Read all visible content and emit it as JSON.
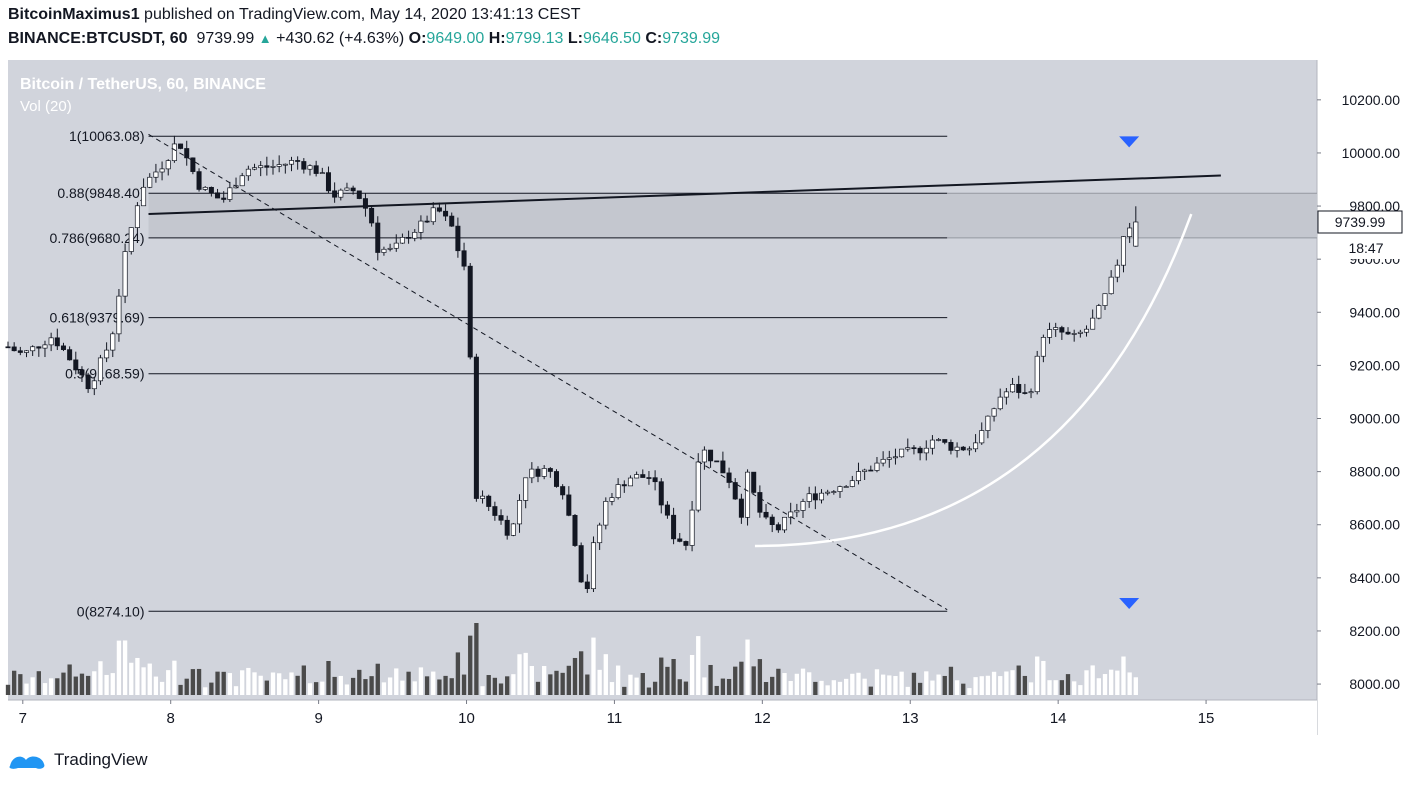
{
  "header": {
    "author": "BitcoinMaximus1",
    "published_text": "published on TradingView.com, May 14, 2020 13:41:13 CEST",
    "symbol": "BINANCE:BTCUSDT, 60",
    "last": "9739.99",
    "change": "+430.62 (+4.63%)",
    "o_label": "O:",
    "o": "9649.00",
    "h_label": "H:",
    "h": "9799.13",
    "l_label": "L:",
    "l": "9646.50",
    "c_label": "C:",
    "c": "9739.99"
  },
  "legend": {
    "title": "Bitcoin / TetherUS, 60, BINANCE",
    "volume": "Vol (20)"
  },
  "price_tag": {
    "value": "9739.99",
    "countdown": "18:47"
  },
  "footer": {
    "brand": "TradingView"
  },
  "colors": {
    "background": "#d1d4dc",
    "panel": "#ffffff",
    "candle_up": "#ffffff",
    "candle_down": "#131722",
    "volume_up": "#ffffff",
    "volume_down": "#4a4a4a",
    "marker": "#2962ff",
    "zone": "#c4c7cf"
  },
  "chart_data": {
    "type": "candlestick",
    "title": "Bitcoin / TetherUS, 60, BINANCE",
    "y_axis": {
      "range": [
        7940,
        10350
      ],
      "ticks": [
        "10200.00",
        "10000.00",
        "9800.00",
        "9600.00",
        "9400.00",
        "9200.00",
        "9000.00",
        "8800.00",
        "8600.00",
        "8400.00",
        "8200.00",
        "8000.00"
      ],
      "tick_values": [
        10200,
        10000,
        9800,
        9600,
        9400,
        9200,
        9000,
        8800,
        8600,
        8400,
        8200,
        8000
      ]
    },
    "x_axis": {
      "ticks": [
        "7",
        "8",
        "9",
        "10",
        "11",
        "12",
        "13",
        "14",
        "15"
      ],
      "tick_days": [
        7,
        8,
        9,
        10,
        11,
        12,
        13,
        14,
        15
      ],
      "range_days": [
        6.9,
        15.75
      ]
    },
    "fib_levels": [
      {
        "label": "1(10063.08)",
        "value": 10063.08
      },
      {
        "label": "0.88(9848.40)",
        "value": 9848.4
      },
      {
        "label": "0.786(9680.24)",
        "value": 9680.24
      },
      {
        "label": "0.618(9379.69)",
        "value": 9379.69
      },
      {
        "label": "0.5(9168.59)",
        "value": 9168.59
      },
      {
        "label": "0(8274.10)",
        "value": 8274.1
      }
    ],
    "fib_range_days": [
      7.85,
      13.25
    ],
    "resistance_zone": [
      9680.24,
      9848.4
    ],
    "trendlines": [
      {
        "name": "ascending-resistance",
        "from": [
          7.85,
          9770
        ],
        "to": [
          15.1,
          9915
        ],
        "style": "solid"
      },
      {
        "name": "descending-diagonal",
        "from": [
          7.85,
          10070
        ],
        "to": [
          13.25,
          8280
        ],
        "style": "dashed"
      }
    ],
    "parabolic_curve": {
      "start": [
        11.95,
        8520
      ],
      "end": [
        14.9,
        9770
      ]
    },
    "markers": [
      {
        "type": "down-arrow",
        "day": 14.48,
        "price": 10040,
        "pane": "price"
      },
      {
        "type": "down-arrow",
        "day": 14.48,
        "pane": "volume"
      }
    ],
    "last_price": 9739.99,
    "price_path": [
      [
        6.9,
        9270
      ],
      [
        7.0,
        9240
      ],
      [
        7.2,
        9310
      ],
      [
        7.3,
        9240
      ],
      [
        7.45,
        9120
      ],
      [
        7.6,
        9300
      ],
      [
        7.7,
        9640
      ],
      [
        7.8,
        9870
      ],
      [
        7.95,
        9960
      ],
      [
        8.05,
        10050
      ],
      [
        8.2,
        9870
      ],
      [
        8.35,
        9820
      ],
      [
        8.5,
        9940
      ],
      [
        8.7,
        9950
      ],
      [
        8.85,
        9970
      ],
      [
        9.0,
        9930
      ],
      [
        9.1,
        9840
      ],
      [
        9.25,
        9860
      ],
      [
        9.35,
        9760
      ],
      [
        9.4,
        9640
      ],
      [
        9.5,
        9630
      ],
      [
        9.6,
        9690
      ],
      [
        9.7,
        9730
      ],
      [
        9.8,
        9790
      ],
      [
        9.9,
        9720
      ],
      [
        9.97,
        9580
      ],
      [
        10.0,
        9570
      ],
      [
        10.06,
        8720
      ],
      [
        10.1,
        8700
      ],
      [
        10.2,
        8640
      ],
      [
        10.3,
        8560
      ],
      [
        10.4,
        8790
      ],
      [
        10.55,
        8810
      ],
      [
        10.65,
        8730
      ],
      [
        10.75,
        8500
      ],
      [
        10.8,
        8300
      ],
      [
        10.85,
        8500
      ],
      [
        10.95,
        8700
      ],
      [
        11.1,
        8780
      ],
      [
        11.25,
        8780
      ],
      [
        11.4,
        8560
      ],
      [
        11.5,
        8520
      ],
      [
        11.55,
        8830
      ],
      [
        11.6,
        8880
      ],
      [
        11.7,
        8830
      ],
      [
        11.8,
        8750
      ],
      [
        11.85,
        8620
      ],
      [
        11.9,
        8780
      ],
      [
        12.0,
        8620
      ],
      [
        12.1,
        8580
      ],
      [
        12.2,
        8640
      ],
      [
        12.3,
        8700
      ],
      [
        12.45,
        8730
      ],
      [
        12.6,
        8770
      ],
      [
        12.75,
        8820
      ],
      [
        12.9,
        8860
      ],
      [
        13.05,
        8880
      ],
      [
        13.15,
        8920
      ],
      [
        13.3,
        8890
      ],
      [
        13.4,
        8890
      ],
      [
        13.5,
        8960
      ],
      [
        13.6,
        9080
      ],
      [
        13.7,
        9120
      ],
      [
        13.8,
        9080
      ],
      [
        13.9,
        9320
      ],
      [
        14.0,
        9330
      ],
      [
        14.1,
        9300
      ],
      [
        14.2,
        9340
      ],
      [
        14.27,
        9400
      ],
      [
        14.35,
        9500
      ],
      [
        14.42,
        9620
      ],
      [
        14.47,
        9790
      ],
      [
        14.5,
        9650
      ],
      [
        14.55,
        9740
      ]
    ]
  }
}
